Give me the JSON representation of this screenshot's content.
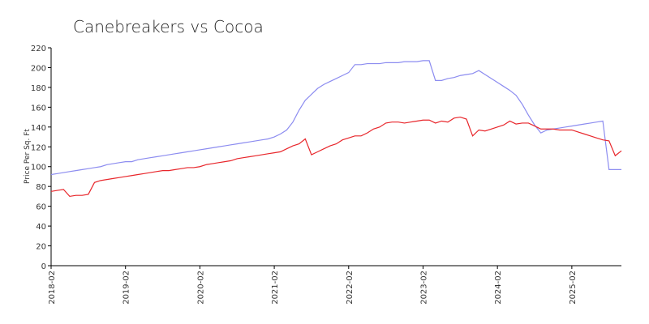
{
  "chart_data": {
    "type": "line",
    "title": "Canebreakers vs Cocoa",
    "y_label": "Price Per Sq. Ft",
    "x": [
      "2018-02",
      "2018-03",
      "2018-04",
      "2018-05",
      "2018-06",
      "2018-07",
      "2018-08",
      "2018-09",
      "2018-10",
      "2018-11",
      "2018-12",
      "2019-01",
      "2019-02",
      "2019-03",
      "2019-04",
      "2019-05",
      "2019-06",
      "2019-07",
      "2019-08",
      "2019-09",
      "2019-10",
      "2019-11",
      "2019-12",
      "2020-01",
      "2020-02",
      "2020-03",
      "2020-04",
      "2020-05",
      "2020-06",
      "2020-07",
      "2020-08",
      "2020-09",
      "2020-10",
      "2020-11",
      "2020-12",
      "2021-01",
      "2021-02",
      "2021-03",
      "2021-04",
      "2021-05",
      "2021-06",
      "2021-07",
      "2021-08",
      "2021-09",
      "2021-10",
      "2021-11",
      "2021-12",
      "2022-01",
      "2022-02",
      "2022-03",
      "2022-04",
      "2022-05",
      "2022-06",
      "2022-07",
      "2022-08",
      "2022-09",
      "2022-10",
      "2022-11",
      "2022-12",
      "2023-01",
      "2023-02",
      "2023-03",
      "2023-04",
      "2023-05",
      "2023-06",
      "2023-07",
      "2023-08",
      "2023-09",
      "2023-10",
      "2023-11",
      "2023-12",
      "2024-01",
      "2024-02",
      "2024-03",
      "2024-04",
      "2024-05",
      "2024-06",
      "2024-07",
      "2024-08",
      "2024-09",
      "2024-10",
      "2024-11",
      "2024-12",
      "2025-01",
      "2025-02",
      "2025-03",
      "2025-04",
      "2025-05",
      "2025-06",
      "2025-07",
      "2025-08",
      "2025-09",
      "2025-10"
    ],
    "series": [
      {
        "color": "#8c8cf0",
        "values": [
          92,
          93,
          94,
          95,
          96,
          97,
          98,
          99,
          100,
          102,
          103,
          104,
          105,
          105,
          107,
          108,
          109,
          110,
          111,
          112,
          113,
          114,
          115,
          116,
          117,
          118,
          119,
          120,
          121,
          122,
          123,
          124,
          125,
          126,
          127,
          128,
          130,
          133,
          137,
          145,
          157,
          167,
          173,
          179,
          183,
          186,
          189,
          192,
          195,
          203,
          203,
          204,
          204,
          204,
          205,
          205,
          205,
          206,
          206,
          206,
          207,
          207,
          187,
          187,
          189,
          190,
          192,
          193,
          194,
          197,
          193,
          189,
          185,
          181,
          177,
          172,
          163,
          152,
          142,
          134,
          137,
          138,
          139,
          140,
          141,
          142,
          143,
          144,
          145,
          146,
          97,
          97,
          97
        ]
      },
      {
        "color": "#e8262b",
        "values": [
          75,
          76,
          77,
          70,
          71,
          71,
          72,
          84,
          86,
          87,
          88,
          89,
          90,
          91,
          92,
          93,
          94,
          95,
          96,
          96,
          97,
          98,
          99,
          99,
          100,
          102,
          103,
          104,
          105,
          106,
          108,
          109,
          110,
          111,
          112,
          113,
          114,
          115,
          118,
          121,
          123,
          128,
          112,
          115,
          118,
          121,
          123,
          127,
          129,
          131,
          131,
          134,
          138,
          140,
          144,
          145,
          145,
          144,
          145,
          146,
          147,
          147,
          144,
          146,
          145,
          149,
          150,
          148,
          131,
          137,
          136,
          138,
          140,
          142,
          146,
          143,
          144,
          144,
          141,
          138,
          138,
          138,
          137,
          137,
          137,
          135,
          133,
          131,
          129,
          127,
          126,
          111,
          116
        ]
      }
    ],
    "xticks": [
      "2018-02",
      "2019-02",
      "2020-02",
      "2021-02",
      "2022-02",
      "2023-02",
      "2024-02",
      "2025-02"
    ],
    "ylim": [
      0,
      220
    ],
    "yticks": [
      0,
      20,
      40,
      60,
      80,
      100,
      120,
      140,
      160,
      180,
      200,
      220
    ],
    "grid": false
  }
}
